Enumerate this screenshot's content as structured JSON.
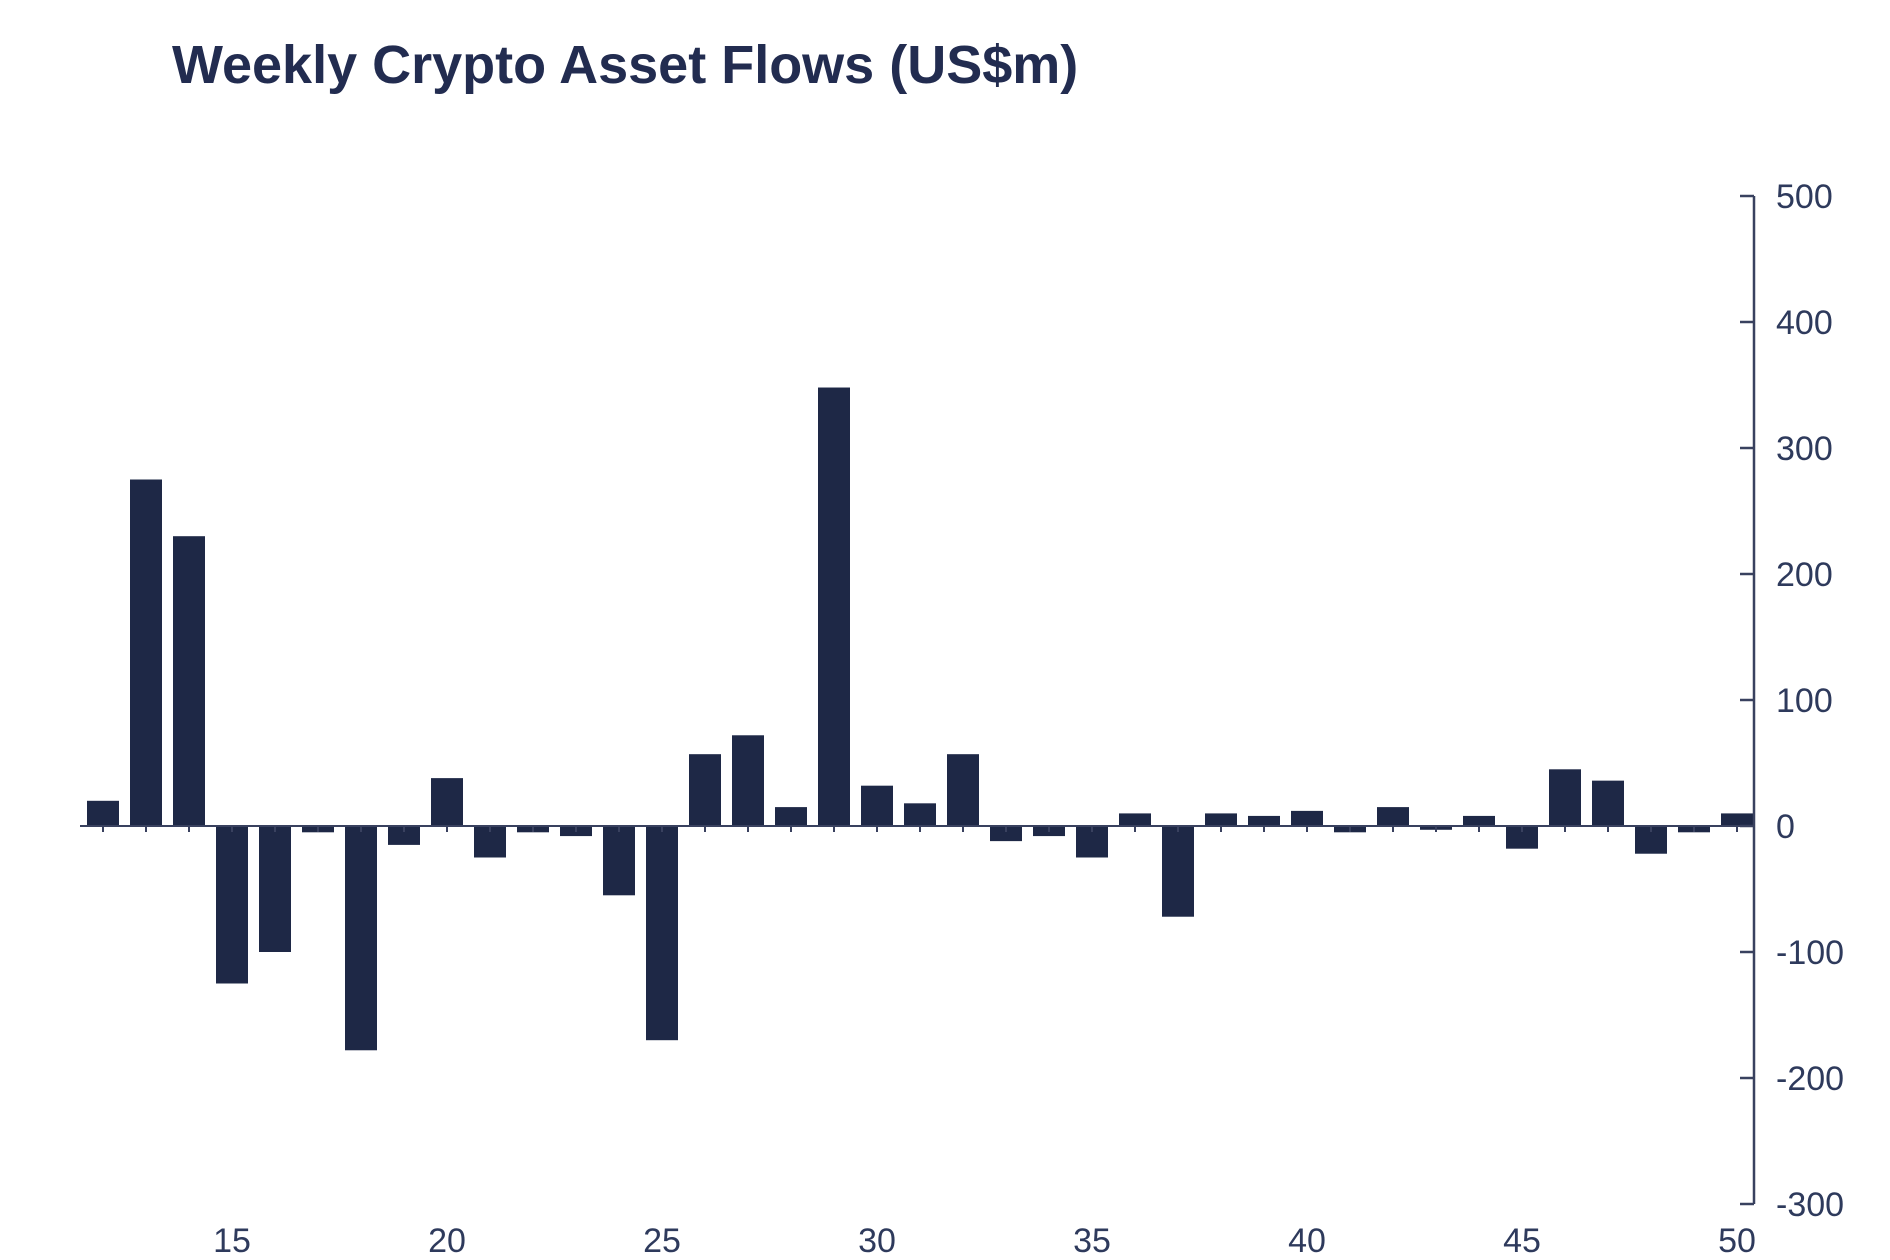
{
  "title": "Weekly Crypto Asset Flows (US$m)",
  "colors": {
    "bar": "#1e2846",
    "axis": "#39415f",
    "title": "#222c50",
    "tick_label": "#2e3a5c",
    "background": "#ffffff"
  },
  "chart_data": {
    "type": "bar",
    "title": "Weekly Crypto Asset Flows (US$m)",
    "xlabel": "",
    "ylabel": "",
    "x": [
      12,
      13,
      14,
      15,
      16,
      17,
      18,
      19,
      20,
      21,
      22,
      23,
      24,
      25,
      26,
      27,
      28,
      29,
      30,
      31,
      32,
      33,
      34,
      35,
      36,
      37,
      38,
      39,
      40,
      41,
      42,
      43,
      44,
      45,
      46,
      47,
      48,
      49,
      50
    ],
    "values": [
      20,
      275,
      230,
      -125,
      -100,
      -5,
      -178,
      -15,
      38,
      -25,
      -5,
      -8,
      -55,
      -170,
      57,
      72,
      15,
      348,
      32,
      18,
      57,
      -12,
      -8,
      -25,
      10,
      -72,
      10,
      8,
      12,
      -5,
      15,
      -3,
      8,
      -18,
      45,
      36,
      -22,
      -5,
      10
    ],
    "ylim": [
      -300,
      500
    ],
    "y_ticks": [
      -300,
      -200,
      -100,
      0,
      100,
      200,
      300,
      400,
      500
    ],
    "x_ticks": [
      15,
      20,
      25,
      30,
      35,
      40,
      45,
      50
    ],
    "grid": false,
    "legend": "none",
    "y_axis_side": "right",
    "bar_color": "#1e2846"
  }
}
